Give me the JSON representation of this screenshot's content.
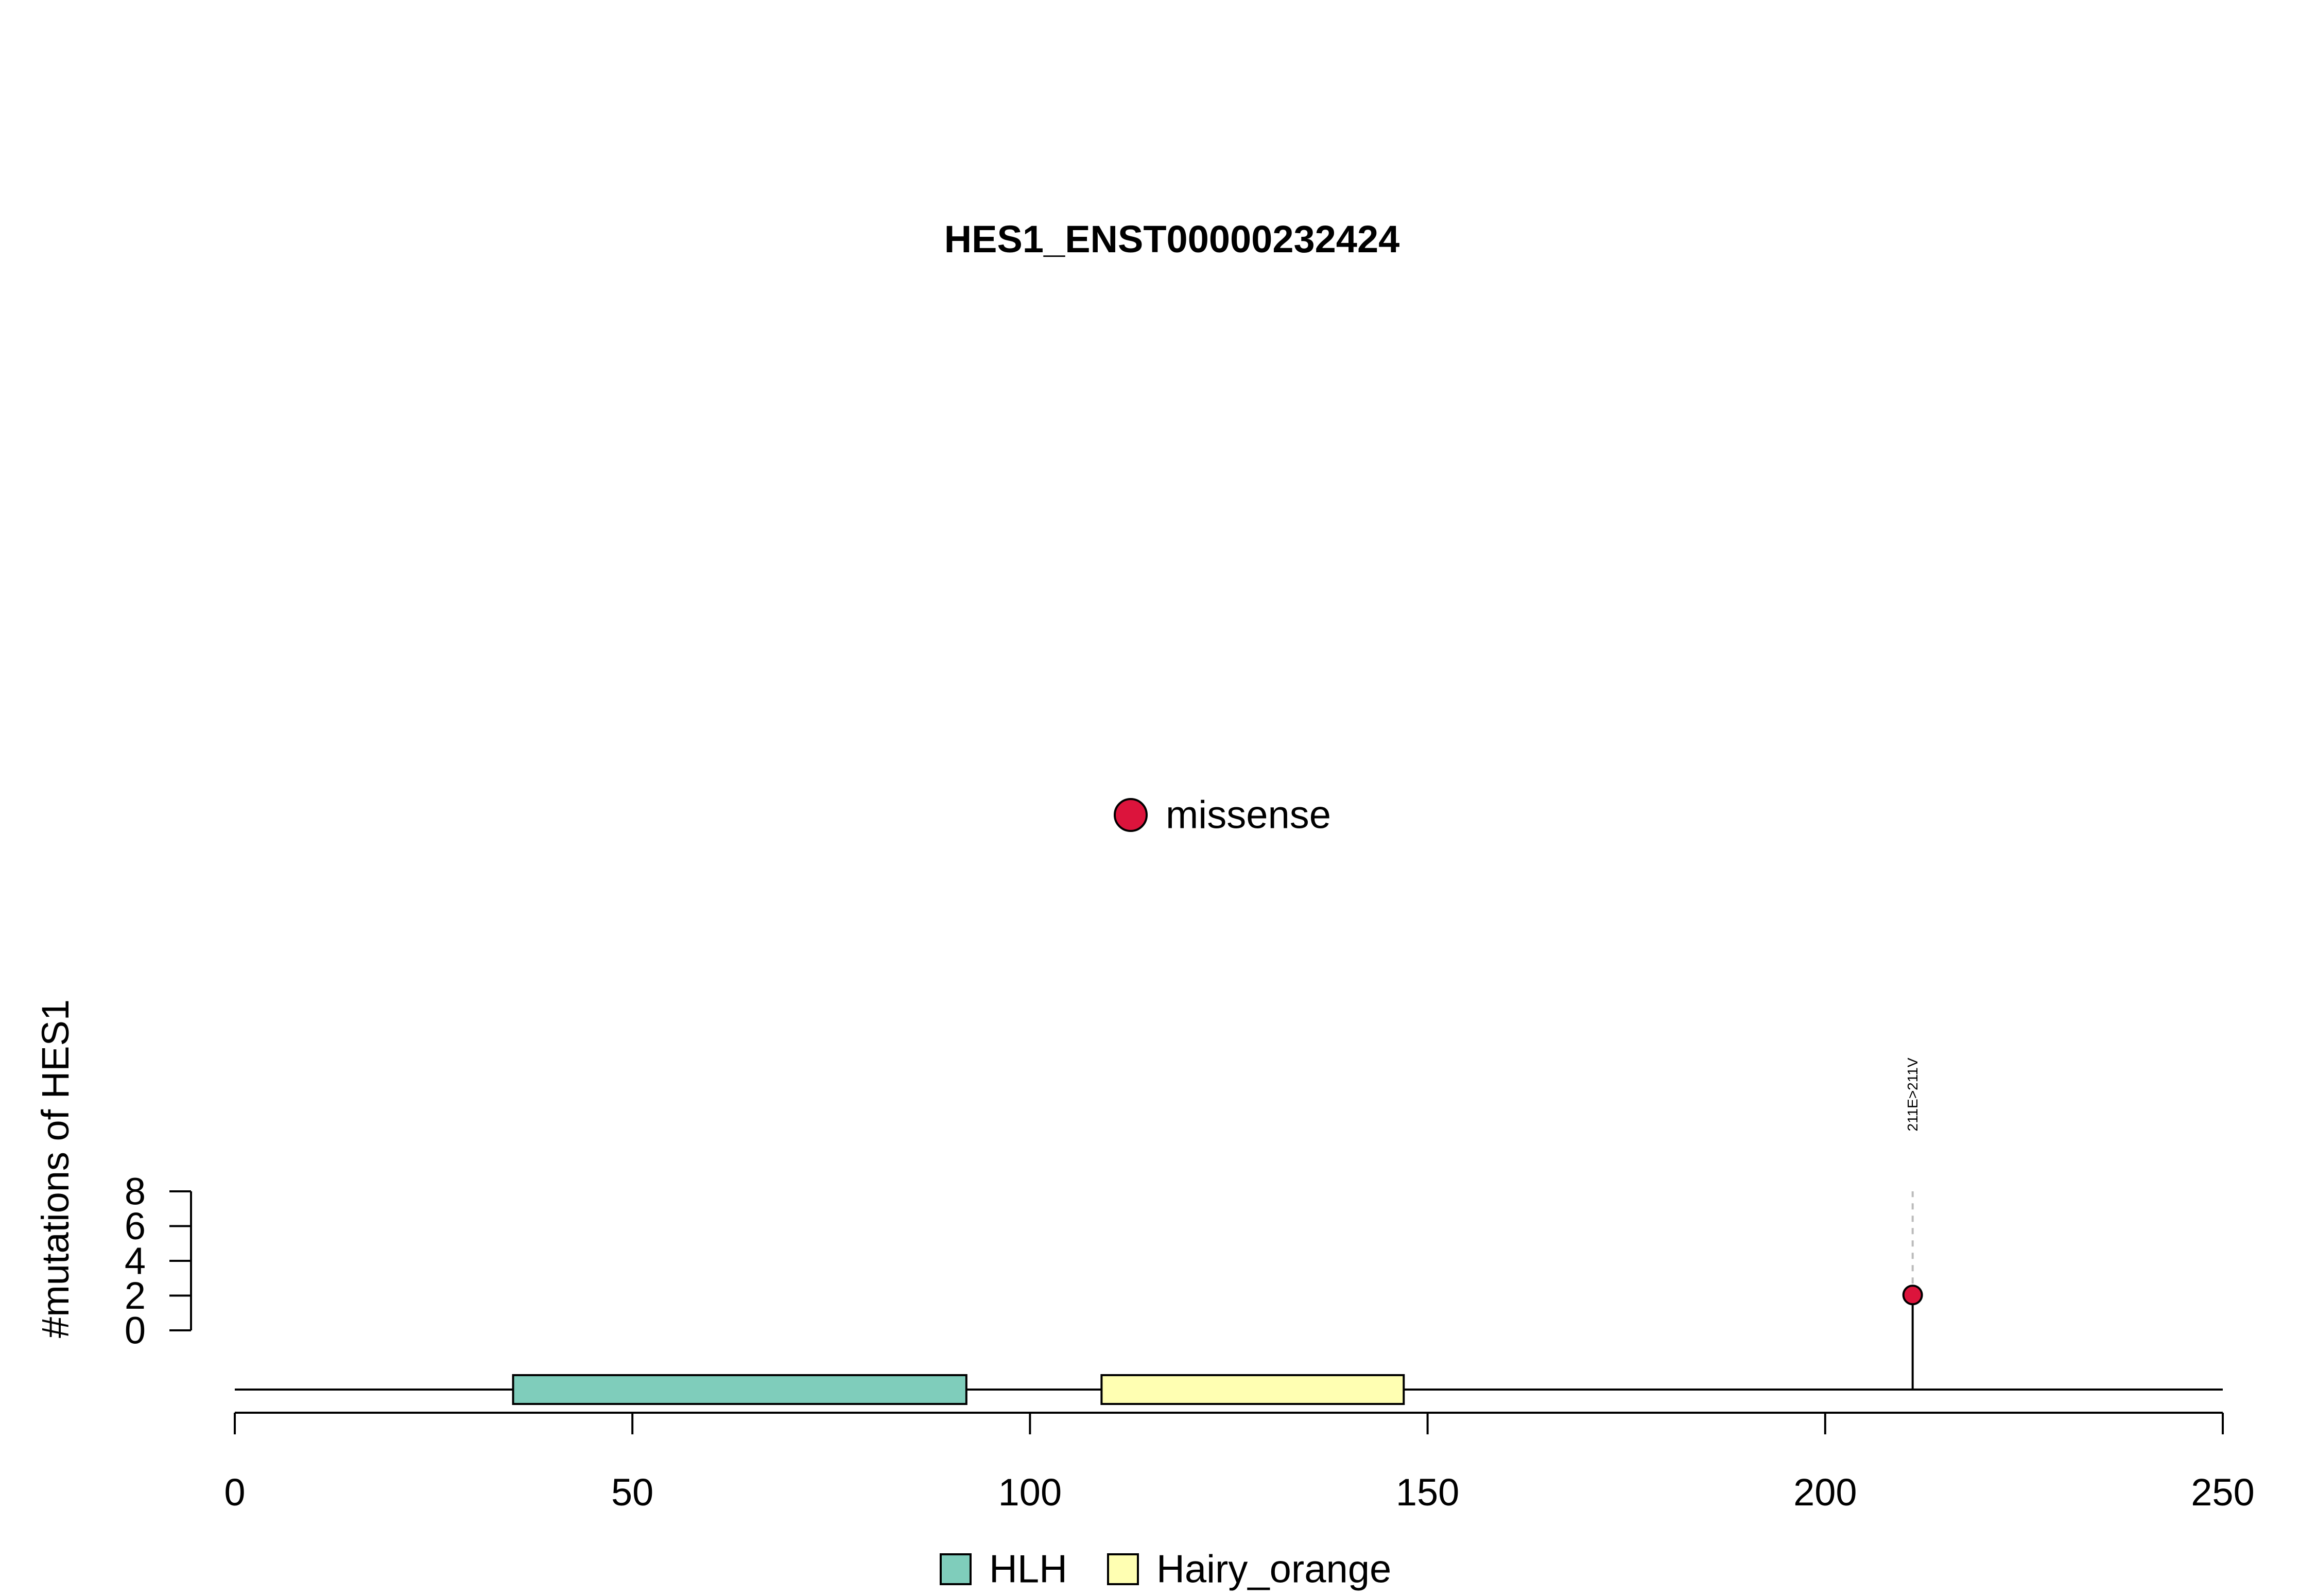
{
  "chart_data": {
    "type": "lollipop",
    "title": "HES1_ENST00000232424",
    "ylabel": "#mutations of HES1",
    "xlabel": "",
    "xlim": [
      0,
      250
    ],
    "x_ticks": [
      0,
      50,
      100,
      150,
      200,
      250
    ],
    "ylim": [
      0,
      8
    ],
    "y_ticks": [
      0,
      2,
      4,
      6,
      8
    ],
    "protein_length": 250,
    "domains": [
      {
        "name": "HLH",
        "start": 35,
        "end": 92,
        "color": "#7FCDBB"
      },
      {
        "name": "Hairy_orange",
        "start": 109,
        "end": 147,
        "color": "#FFFFB2"
      }
    ],
    "mutations": [
      {
        "position": 211,
        "count": 1,
        "label": "211E>211V",
        "type": "missense"
      }
    ],
    "mutation_types": [
      {
        "name": "missense",
        "color": "#DC143C"
      }
    ],
    "legend": {
      "mutation_types": [
        "missense"
      ],
      "domains": [
        "HLH",
        "Hairy_orange"
      ]
    }
  }
}
